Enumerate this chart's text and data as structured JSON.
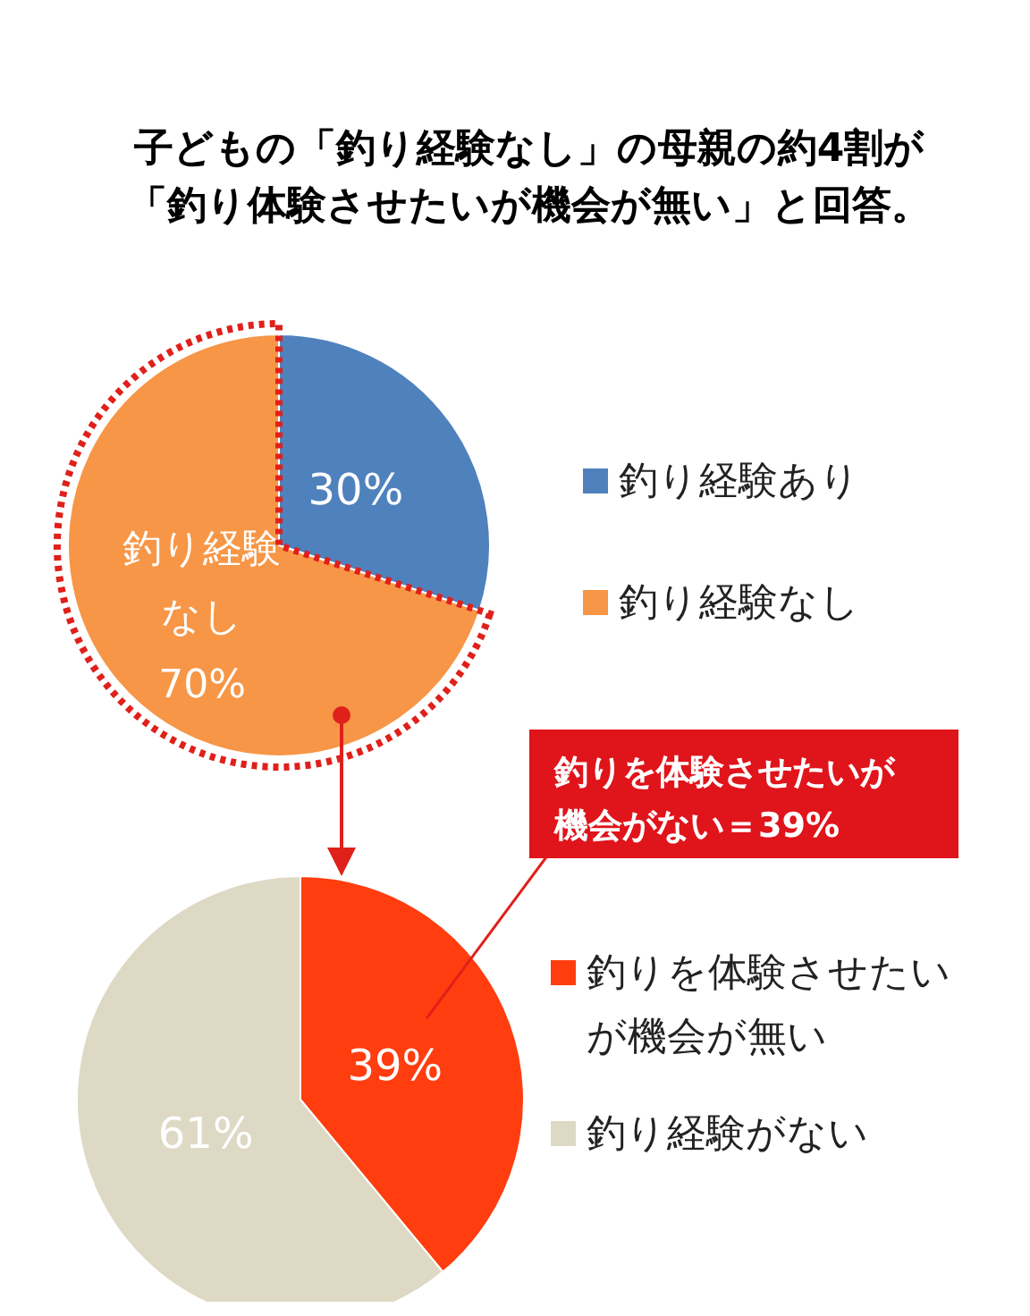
{
  "chart_data": [
    {
      "type": "pie",
      "title": "子どもの「釣り経験なし」の母親の約4割が「釣り体験させたいが機会が無い」と回答。",
      "categories": [
        "釣り経験あり",
        "釣り経験なし"
      ],
      "values": [
        30,
        70
      ],
      "colors": [
        "#4f81bd",
        "#f79646"
      ],
      "value_labels": [
        "30%",
        "釣り経験なし70%"
      ],
      "legend": "right"
    },
    {
      "type": "pie",
      "categories": [
        "釣りを体験させたいが機会が無い",
        "釣り経験がない"
      ],
      "values": [
        39,
        61
      ],
      "colors": [
        "#ff3d0f",
        "#ddd9c4"
      ],
      "value_labels": [
        "39%",
        "61%"
      ],
      "legend": "right",
      "annotations": [
        "釣りを体験させたいが機会がない＝39%"
      ]
    }
  ]
}
